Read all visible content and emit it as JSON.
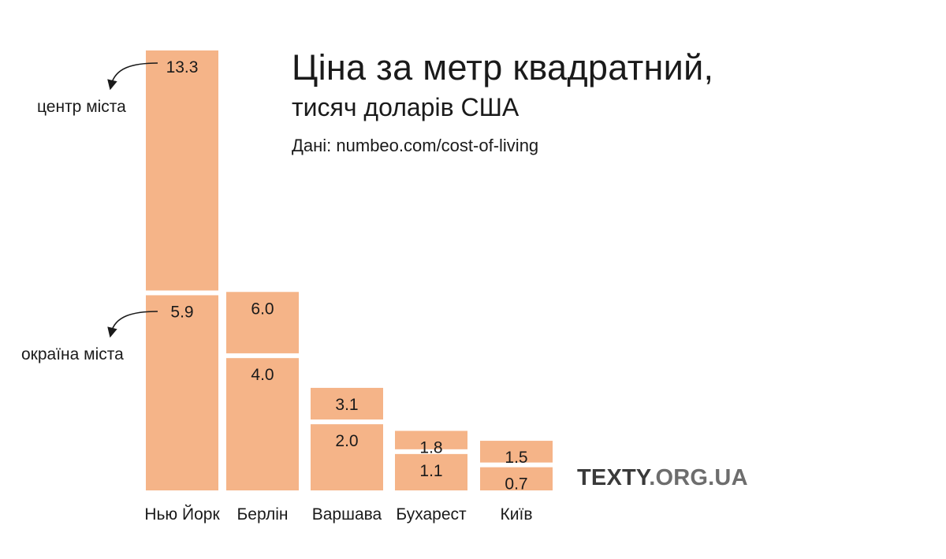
{
  "title": "Ціна за метр квадратний,",
  "subtitle": "тисяч доларів США",
  "source": "Дані: numbeo.com/cost-of-living",
  "brand": {
    "main": "TEXTY",
    "tld": ".ORG.UA"
  },
  "annotations": {
    "center": "центр міста",
    "outskirts": "окраїна міста"
  },
  "colors": {
    "bar": "#f5b488",
    "text": "#1a1a1a",
    "brand": "#3a3a3a",
    "brand_tld": "#6d6d6d"
  },
  "chart_data": {
    "type": "bar",
    "categories": [
      "Нью Йорк",
      "Берлін",
      "Варшава",
      "Бухарест",
      "Київ"
    ],
    "series": [
      {
        "name": "окраїна міста",
        "values": [
          5.9,
          4.0,
          2.0,
          1.1,
          0.7
        ]
      },
      {
        "name": "центр міста",
        "values": [
          13.3,
          6.0,
          3.1,
          1.8,
          1.5
        ]
      }
    ],
    "value_labels": {
      "outskirts": [
        "5.9",
        "4.0",
        "2.0",
        "1.1",
        "0.7"
      ],
      "center": [
        "13.3",
        "6.0",
        "3.1",
        "1.8",
        "1.5"
      ]
    },
    "ylim": [
      0,
      13.3
    ],
    "grid": false,
    "xlabel": "",
    "ylabel": ""
  }
}
